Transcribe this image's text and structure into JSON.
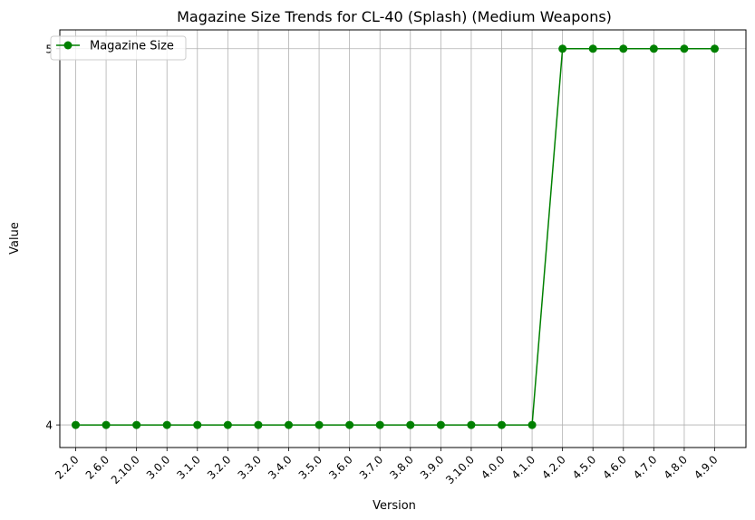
{
  "chart_data": {
    "type": "line",
    "title": "Magazine Size Trends for CL-40 (Splash) (Medium Weapons)",
    "xlabel": "Version",
    "ylabel": "Value",
    "categories": [
      "2.2.0",
      "2.6.0",
      "2.10.0",
      "3.0.0",
      "3.1.0",
      "3.2.0",
      "3.3.0",
      "3.4.0",
      "3.5.0",
      "3.6.0",
      "3.7.0",
      "3.8.0",
      "3.9.0",
      "3.10.0",
      "4.0.0",
      "4.1.0",
      "4.2.0",
      "4.5.0",
      "4.6.0",
      "4.7.0",
      "4.8.0",
      "4.9.0"
    ],
    "yticks": [
      4,
      5
    ],
    "ylim": [
      3.94,
      5.05
    ],
    "grid": true,
    "legend_position": "top-left",
    "series": [
      {
        "name": "Magazine Size",
        "color": "#008000",
        "marker": "circle",
        "values": [
          4,
          4,
          4,
          4,
          4,
          4,
          4,
          4,
          4,
          4,
          4,
          4,
          4,
          4,
          4,
          4,
          5,
          5,
          5,
          5,
          5,
          5
        ]
      }
    ]
  }
}
